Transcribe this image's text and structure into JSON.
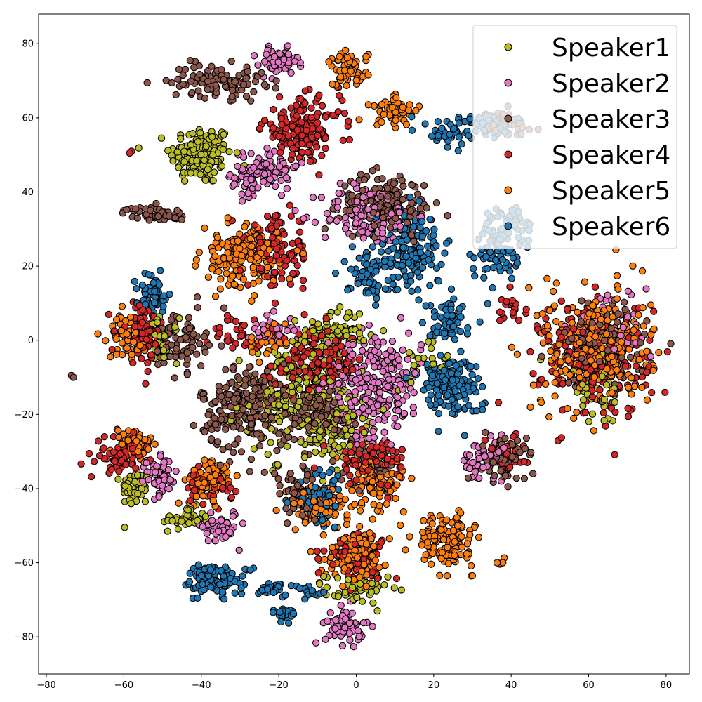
{
  "chart_data": {
    "type": "scatter",
    "xlim": [
      -82,
      86
    ],
    "ylim": [
      -90,
      88
    ],
    "x_ticks": [
      -80,
      -60,
      -40,
      -20,
      0,
      20,
      40,
      60,
      80
    ],
    "y_ticks": [
      -80,
      -60,
      -40,
      -20,
      0,
      20,
      40,
      60,
      80
    ],
    "grid": false,
    "legend_position": "top-right",
    "series": [
      {
        "name": "Speaker1",
        "color": "#bcbd22",
        "clusters": [
          {
            "cx": -40,
            "cy": 50,
            "sx": 4,
            "sy": 4,
            "n": 150
          },
          {
            "cx": -57,
            "cy": -40,
            "sx": 1.8,
            "sy": 2.5,
            "n": 50
          },
          {
            "cx": -44,
            "cy": -48,
            "sx": 3,
            "sy": 1.5,
            "n": 40
          },
          {
            "cx": -15,
            "cy": -15,
            "sx": 7,
            "sy": 8,
            "n": 200
          },
          {
            "cx": -50,
            "cy": 0,
            "sx": 2,
            "sy": 3,
            "n": 40
          },
          {
            "cx": -5,
            "cy": -24,
            "sx": 4,
            "sy": 4,
            "n": 90
          },
          {
            "cx": -5,
            "cy": 3,
            "sx": 4,
            "sy": 3,
            "n": 60
          },
          {
            "cx": 0,
            "cy": -67,
            "sx": 4,
            "sy": 2,
            "n": 60
          },
          {
            "cx": 62,
            "cy": -12,
            "sx": 6,
            "sy": 6,
            "n": 50
          },
          {
            "cx": 18,
            "cy": -5,
            "sx": 4,
            "sy": 4,
            "n": 30
          }
        ]
      },
      {
        "name": "Speaker2",
        "color": "#e377c2",
        "clusters": [
          {
            "cx": -20,
            "cy": 75,
            "sx": 2.5,
            "sy": 1.8,
            "n": 60
          },
          {
            "cx": -23,
            "cy": 47,
            "sx": 4,
            "sy": 3,
            "n": 80
          },
          {
            "cx": -28,
            "cy": 42,
            "sx": 2,
            "sy": 2,
            "n": 30
          },
          {
            "cx": 3,
            "cy": 34,
            "sx": 6,
            "sy": 4,
            "n": 130
          },
          {
            "cx": 5,
            "cy": -12,
            "sx": 6,
            "sy": 7,
            "n": 260
          },
          {
            "cx": -22,
            "cy": 3,
            "sx": 3,
            "sy": 2,
            "n": 40
          },
          {
            "cx": -51,
            "cy": -37,
            "sx": 2.5,
            "sy": 2.5,
            "n": 60
          },
          {
            "cx": -35,
            "cy": -50,
            "sx": 2.3,
            "sy": 2.3,
            "n": 50
          },
          {
            "cx": -3,
            "cy": -77,
            "sx": 2.5,
            "sy": 2.5,
            "n": 60
          },
          {
            "cx": 33,
            "cy": -33,
            "sx": 3,
            "sy": 3,
            "n": 50
          },
          {
            "cx": 65,
            "cy": 3,
            "sx": 6,
            "sy": 6,
            "n": 40
          }
        ]
      },
      {
        "name": "Speaker3",
        "color": "#8c564b",
        "clusters": [
          {
            "cx": -36,
            "cy": 70,
            "sx": 6,
            "sy": 2.2,
            "n": 110
          },
          {
            "cx": -52,
            "cy": 34,
            "sx": 4,
            "sy": 1,
            "n": 50
          },
          {
            "cx": -28,
            "cy": -18,
            "sx": 6,
            "sy": 6,
            "n": 230
          },
          {
            "cx": -10,
            "cy": -20,
            "sx": 5,
            "sy": 4,
            "n": 90
          },
          {
            "cx": 8,
            "cy": 37,
            "sx": 6,
            "sy": 4,
            "n": 150
          },
          {
            "cx": -45,
            "cy": 0,
            "sx": 3,
            "sy": 4,
            "n": 80
          },
          {
            "cx": -15,
            "cy": -42,
            "sx": 4,
            "sy": 4,
            "n": 70
          },
          {
            "cx": 38,
            "cy": -32,
            "sx": 3,
            "sy": 3,
            "n": 70
          },
          {
            "cx": 63,
            "cy": -2,
            "sx": 6,
            "sy": 6,
            "n": 120
          },
          {
            "cx": 5,
            "cy": -35,
            "sx": 4,
            "sy": 3,
            "n": 50
          },
          {
            "cx": 38,
            "cy": 58,
            "sx": 4,
            "sy": 2,
            "n": 40
          }
        ]
      },
      {
        "name": "Speaker4",
        "color": "#d62728",
        "clusters": [
          {
            "cx": -14,
            "cy": 57,
            "sx": 5,
            "sy": 4,
            "n": 160
          },
          {
            "cx": -20,
            "cy": 24,
            "sx": 4,
            "sy": 5,
            "n": 100
          },
          {
            "cx": -10,
            "cy": -6,
            "sx": 6,
            "sy": 4,
            "n": 150
          },
          {
            "cx": -55,
            "cy": 2,
            "sx": 3,
            "sy": 4,
            "n": 80
          },
          {
            "cx": -61,
            "cy": -31,
            "sx": 3,
            "sy": 2.5,
            "n": 60
          },
          {
            "cx": -38,
            "cy": -40,
            "sx": 3,
            "sy": 2,
            "n": 40
          },
          {
            "cx": 3,
            "cy": -32,
            "sx": 5,
            "sy": 3,
            "n": 70
          },
          {
            "cx": 0,
            "cy": -58,
            "sx": 4,
            "sy": 3,
            "n": 70
          },
          {
            "cx": 38,
            "cy": -30,
            "sx": 3,
            "sy": 2.5,
            "n": 40
          },
          {
            "cx": 62,
            "cy": -5,
            "sx": 7,
            "sy": 8,
            "n": 200
          },
          {
            "cx": 40,
            "cy": 9,
            "sx": 2,
            "sy": 2,
            "n": 20
          },
          {
            "cx": -31,
            "cy": 1,
            "sx": 3,
            "sy": 3,
            "n": 30
          }
        ]
      },
      {
        "name": "Speaker5",
        "color": "#ff7f0e",
        "clusters": [
          {
            "cx": -2,
            "cy": 73,
            "sx": 2.5,
            "sy": 2.5,
            "n": 60
          },
          {
            "cx": 10,
            "cy": 62,
            "sx": 3.5,
            "sy": 2,
            "n": 50
          },
          {
            "cx": -30,
            "cy": 22,
            "sx": 5,
            "sy": 4,
            "n": 170
          },
          {
            "cx": -59,
            "cy": 1,
            "sx": 2.5,
            "sy": 3,
            "n": 50
          },
          {
            "cx": -57,
            "cy": -28,
            "sx": 2.5,
            "sy": 2.5,
            "n": 50
          },
          {
            "cx": -38,
            "cy": -38,
            "sx": 3,
            "sy": 3,
            "n": 80
          },
          {
            "cx": -10,
            "cy": -45,
            "sx": 4,
            "sy": 3,
            "n": 80
          },
          {
            "cx": 5,
            "cy": -38,
            "sx": 4,
            "sy": 4,
            "n": 80
          },
          {
            "cx": 0,
            "cy": -58,
            "sx": 4,
            "sy": 3,
            "n": 100
          },
          {
            "cx": 23,
            "cy": -54,
            "sx": 3.5,
            "sy": 3.5,
            "n": 140
          },
          {
            "cx": 62,
            "cy": -2,
            "sx": 7,
            "sy": 8,
            "n": 260
          },
          {
            "cx": -22,
            "cy": 0,
            "sx": 4,
            "sy": 3,
            "n": 30
          },
          {
            "cx": 37,
            "cy": -60,
            "sx": 0.6,
            "sy": 0.6,
            "n": 6
          }
        ]
      },
      {
        "name": "Speaker6",
        "color": "#1f77b4",
        "clusters": [
          {
            "cx": 24,
            "cy": 56,
            "sx": 3,
            "sy": 2,
            "n": 40
          },
          {
            "cx": 36,
            "cy": 58,
            "sx": 4,
            "sy": 2,
            "n": 60
          },
          {
            "cx": 14,
            "cy": 25,
            "sx": 4,
            "sy": 6,
            "n": 160
          },
          {
            "cx": 36,
            "cy": 24,
            "sx": 3,
            "sy": 4,
            "n": 80
          },
          {
            "cx": 3,
            "cy": 18,
            "sx": 3,
            "sy": 3,
            "n": 60
          },
          {
            "cx": -53,
            "cy": 13,
            "sx": 2,
            "sy": 2.5,
            "n": 50
          },
          {
            "cx": 24,
            "cy": 5,
            "sx": 3,
            "sy": 3,
            "n": 60
          },
          {
            "cx": 24,
            "cy": -12,
            "sx": 4,
            "sy": 4,
            "n": 150
          },
          {
            "cx": -40,
            "cy": -64,
            "sx": 2,
            "sy": 2,
            "n": 40
          },
          {
            "cx": -33,
            "cy": -65,
            "sx": 3,
            "sy": 2,
            "n": 50
          },
          {
            "cx": -22,
            "cy": -67,
            "sx": 2.5,
            "sy": 1,
            "n": 30
          },
          {
            "cx": -19,
            "cy": -74,
            "sx": 1.5,
            "sy": 1,
            "n": 20
          },
          {
            "cx": -9,
            "cy": -43,
            "sx": 3,
            "sy": 4,
            "n": 60
          },
          {
            "cx": -12,
            "cy": -68,
            "sx": 2,
            "sy": 1,
            "n": 15
          },
          {
            "cx": 40,
            "cy": 32,
            "sx": 3,
            "sy": 2,
            "n": 40
          }
        ]
      }
    ],
    "extra_points": [
      {
        "x": -73,
        "y": -10,
        "color": "#8c564b"
      },
      {
        "x": -73.5,
        "y": -9.5,
        "color": "#8c564b"
      },
      {
        "x": -58.5,
        "y": 50.5,
        "color": "#d62728"
      },
      {
        "x": -58,
        "y": 51,
        "color": "#d62728"
      }
    ]
  }
}
